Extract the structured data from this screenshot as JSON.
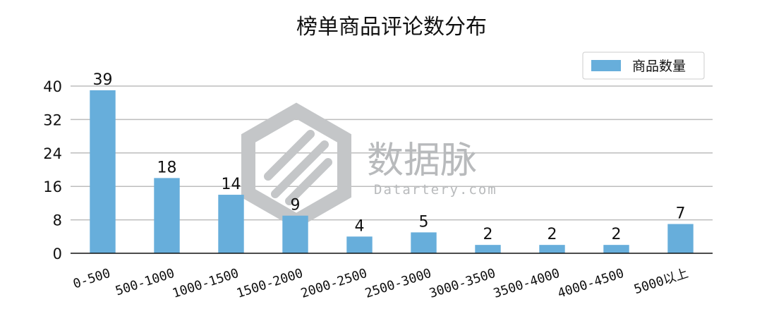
{
  "chart_data": {
    "type": "bar",
    "title": "榜单商品评论数分布",
    "categories": [
      "0-500",
      "500-1000",
      "1000-1500",
      "1500-2000",
      "2000-2500",
      "2500-3000",
      "3000-3500",
      "3500-4000",
      "4000-4500",
      "5000以上"
    ],
    "series": [
      {
        "name": "商品数量",
        "values": [
          39,
          18,
          14,
          9,
          4,
          5,
          2,
          2,
          2,
          7
        ]
      }
    ],
    "ylim": [
      0,
      40
    ],
    "yticks": [
      0,
      8,
      16,
      24,
      32,
      40
    ],
    "xlabel": "",
    "ylabel": "",
    "grid": "horizontal",
    "legend_position": "top-right",
    "bar_color": "#67aedb"
  },
  "watermark": {
    "text": "数据脉",
    "subtext": "Datartery.com"
  }
}
